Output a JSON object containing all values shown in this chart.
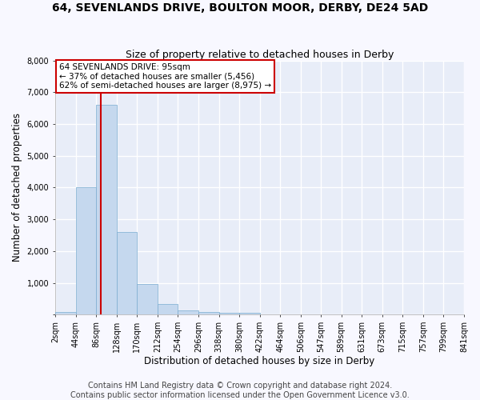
{
  "title": "64, SEVENLANDS DRIVE, BOULTON MOOR, DERBY, DE24 5AD",
  "subtitle": "Size of property relative to detached houses in Derby",
  "xlabel": "Distribution of detached houses by size in Derby",
  "ylabel": "Number of detached properties",
  "footer_line1": "Contains HM Land Registry data © Crown copyright and database right 2024.",
  "footer_line2": "Contains public sector information licensed under the Open Government Licence v3.0.",
  "annotation_line1": "64 SEVENLANDS DRIVE: 95sqm",
  "annotation_line2": "← 37% of detached houses are smaller (5,456)",
  "annotation_line3": "62% of semi-detached houses are larger (8,975) →",
  "bin_edges": [
    2,
    44,
    86,
    128,
    170,
    212,
    254,
    296,
    338,
    380,
    422,
    464,
    506,
    547,
    589,
    631,
    673,
    715,
    757,
    799,
    841
  ],
  "bar_heights": [
    80,
    4000,
    6600,
    2600,
    960,
    330,
    130,
    80,
    60,
    60,
    0,
    0,
    0,
    0,
    0,
    0,
    0,
    0,
    0,
    0
  ],
  "tick_labels": [
    "2sqm",
    "44sqm",
    "86sqm",
    "128sqm",
    "170sqm",
    "212sqm",
    "254sqm",
    "296sqm",
    "338sqm",
    "380sqm",
    "422sqm",
    "464sqm",
    "506sqm",
    "547sqm",
    "589sqm",
    "631sqm",
    "673sqm",
    "715sqm",
    "757sqm",
    "799sqm",
    "841sqm"
  ],
  "bar_color": "#c5d8ee",
  "bar_edge_color": "#7aacd0",
  "vline_x": 95,
  "vline_color": "#cc0000",
  "ann_edge_color": "#cc0000",
  "ylim_max": 8000,
  "yticks": [
    0,
    1000,
    2000,
    3000,
    4000,
    5000,
    6000,
    7000,
    8000
  ],
  "ax_bg_color": "#e8edf8",
  "fig_bg_color": "#f8f8ff",
  "grid_color": "#ffffff",
  "title_fontsize": 10,
  "subtitle_fontsize": 9,
  "label_fontsize": 8.5,
  "tick_fontsize": 7,
  "ann_fontsize": 7.5,
  "footer_fontsize": 7
}
